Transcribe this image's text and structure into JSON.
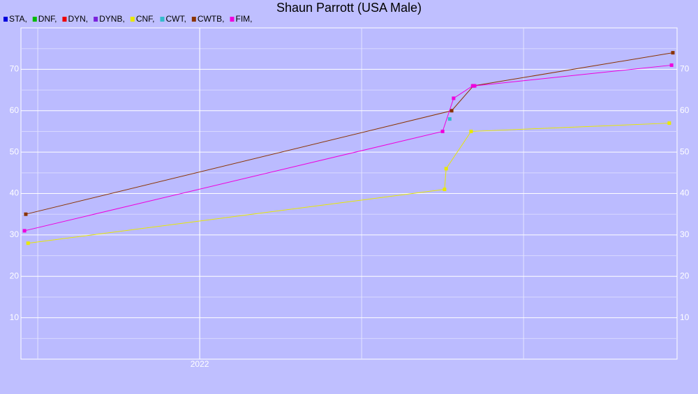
{
  "chart_data": {
    "type": "line",
    "title": "Shaun Parrott (USA Male)",
    "series": [
      {
        "name": "STA,",
        "color": "#0000dd",
        "x": [],
        "values": []
      },
      {
        "name": "DNF,",
        "color": "#00bb00",
        "x": [],
        "values": []
      },
      {
        "name": "DYN,",
        "color": "#ee0000",
        "x": [],
        "values": []
      },
      {
        "name": "DYNB,",
        "color": "#7a22dd",
        "x": [],
        "values": []
      },
      {
        "name": "CNF,",
        "color": "#e8e800",
        "x": [
          2021.47,
          2022.756,
          2022.761,
          2022.838,
          2023.45
        ],
        "values": [
          28,
          41,
          46,
          55,
          57
        ]
      },
      {
        "name": "CWT,",
        "color": "#33bbcc",
        "x": [
          2022.772
        ],
        "values": [
          58
        ]
      },
      {
        "name": "CWTB,",
        "color": "#8b3300",
        "x": [
          2021.463,
          2022.778,
          2022.845,
          2023.461
        ],
        "values": [
          35,
          60,
          66,
          74
        ]
      },
      {
        "name": "FIM,",
        "color": "#ee00dd",
        "x": [
          2021.459,
          2022.75,
          2022.784,
          2022.843,
          2022.849,
          2023.457
        ],
        "values": [
          31,
          55,
          63,
          66,
          66,
          71
        ]
      }
    ],
    "xlim": [
      2021.448,
      2023.474
    ],
    "xticks": [
      {
        "value": 2022,
        "label": "2022"
      }
    ],
    "x_gridlines": [
      2021.5,
      2022,
      2022.5,
      2023
    ],
    "ylim": [
      0,
      80
    ],
    "yticks": [
      10,
      20,
      30,
      40,
      50,
      60,
      70
    ],
    "minor_yticks": [
      5,
      15,
      25,
      35,
      45,
      55,
      65,
      75
    ],
    "grid": true
  }
}
